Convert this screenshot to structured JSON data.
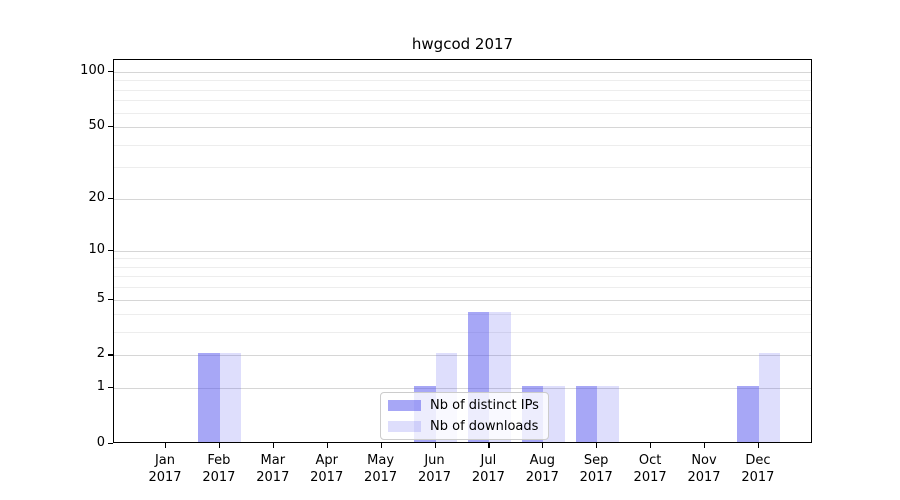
{
  "window": {
    "background": "#ffffff"
  },
  "chart_data": {
    "type": "bar",
    "title": "hwgcod 2017",
    "categories": [
      "Jan",
      "Feb",
      "Mar",
      "Apr",
      "May",
      "Jun",
      "Jul",
      "Aug",
      "Sep",
      "Oct",
      "Nov",
      "Dec"
    ],
    "category_year": "2017",
    "xlabel": "",
    "ylabel": "",
    "series": [
      {
        "name": "Nb of distinct IPs",
        "color": "rgba(80, 80, 238, 0.5)",
        "values": [
          0,
          2,
          0,
          0,
          0,
          1,
          4,
          1,
          1,
          0,
          0,
          1
        ]
      },
      {
        "name": "Nb of downloads",
        "color": "rgba(80, 80, 238, 0.19)",
        "values": [
          0,
          2,
          0,
          0,
          0,
          2,
          4,
          1,
          1,
          0,
          0,
          2
        ]
      }
    ],
    "yscale": "log1p",
    "ylim": [
      0,
      116
    ],
    "y_major_ticks": [
      0,
      1,
      2,
      5,
      10,
      20,
      50,
      100
    ],
    "y_minor_ticks": [
      3,
      4,
      6,
      7,
      8,
      9,
      30,
      40,
      60,
      70,
      80,
      90
    ],
    "grid": "horizontal",
    "legend_position": "bottom-center-inside",
    "frame": "full-box"
  }
}
